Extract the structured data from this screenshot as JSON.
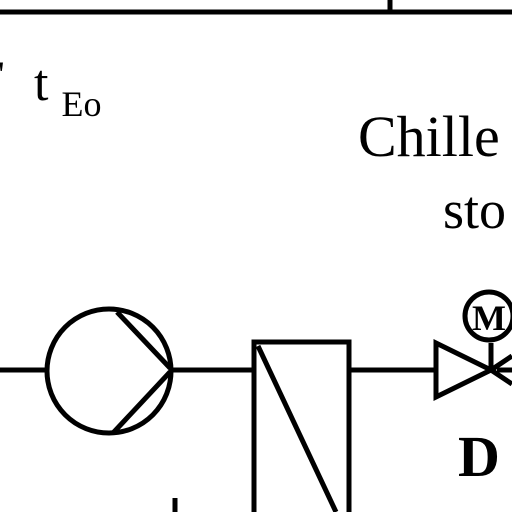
{
  "labels": {
    "t_main": "t",
    "t_sub": "Eo",
    "chiller": "Chille",
    "storage": "sto",
    "valve_motor": "M",
    "d_label": "D"
  }
}
